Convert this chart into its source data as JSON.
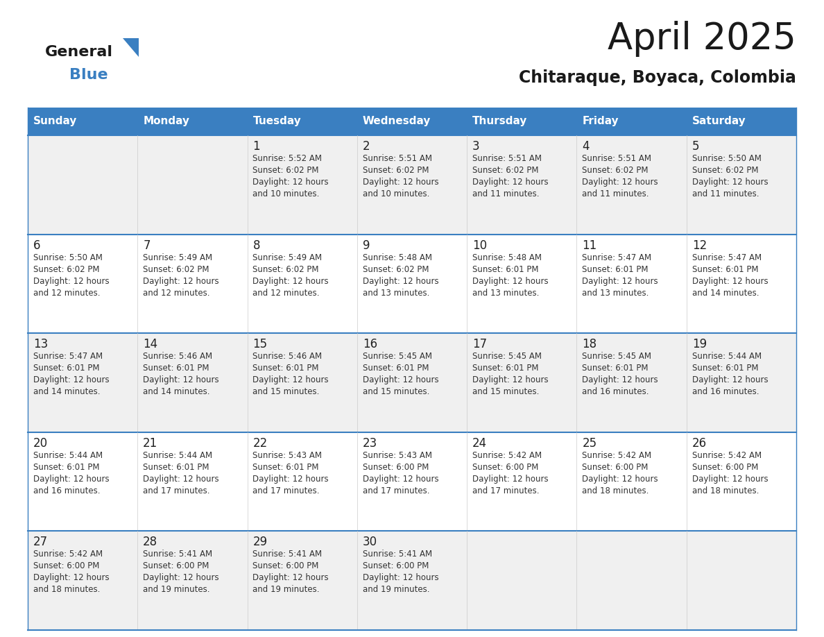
{
  "title": "April 2025",
  "subtitle": "Chitaraque, Boyaca, Colombia",
  "header_color": "#3a7fc1",
  "header_text_color": "#ffffff",
  "row_bg_colors": [
    "#f0f0f0",
    "#ffffff"
  ],
  "border_color": "#3a7fc1",
  "cell_border_color": "#cccccc",
  "text_color": "#333333",
  "day_num_color": "#222222",
  "days_of_week": [
    "Sunday",
    "Monday",
    "Tuesday",
    "Wednesday",
    "Thursday",
    "Friday",
    "Saturday"
  ],
  "calendar_data": [
    [
      {
        "day": "",
        "sunrise": "",
        "sunset": "",
        "daylight": ""
      },
      {
        "day": "",
        "sunrise": "",
        "sunset": "",
        "daylight": ""
      },
      {
        "day": "1",
        "sunrise": "5:52 AM",
        "sunset": "6:02 PM",
        "daylight": "12 hours and 10 minutes."
      },
      {
        "day": "2",
        "sunrise": "5:51 AM",
        "sunset": "6:02 PM",
        "daylight": "12 hours and 10 minutes."
      },
      {
        "day": "3",
        "sunrise": "5:51 AM",
        "sunset": "6:02 PM",
        "daylight": "12 hours and 11 minutes."
      },
      {
        "day": "4",
        "sunrise": "5:51 AM",
        "sunset": "6:02 PM",
        "daylight": "12 hours and 11 minutes."
      },
      {
        "day": "5",
        "sunrise": "5:50 AM",
        "sunset": "6:02 PM",
        "daylight": "12 hours and 11 minutes."
      }
    ],
    [
      {
        "day": "6",
        "sunrise": "5:50 AM",
        "sunset": "6:02 PM",
        "daylight": "12 hours and 12 minutes."
      },
      {
        "day": "7",
        "sunrise": "5:49 AM",
        "sunset": "6:02 PM",
        "daylight": "12 hours and 12 minutes."
      },
      {
        "day": "8",
        "sunrise": "5:49 AM",
        "sunset": "6:02 PM",
        "daylight": "12 hours and 12 minutes."
      },
      {
        "day": "9",
        "sunrise": "5:48 AM",
        "sunset": "6:02 PM",
        "daylight": "12 hours and 13 minutes."
      },
      {
        "day": "10",
        "sunrise": "5:48 AM",
        "sunset": "6:01 PM",
        "daylight": "12 hours and 13 minutes."
      },
      {
        "day": "11",
        "sunrise": "5:47 AM",
        "sunset": "6:01 PM",
        "daylight": "12 hours and 13 minutes."
      },
      {
        "day": "12",
        "sunrise": "5:47 AM",
        "sunset": "6:01 PM",
        "daylight": "12 hours and 14 minutes."
      }
    ],
    [
      {
        "day": "13",
        "sunrise": "5:47 AM",
        "sunset": "6:01 PM",
        "daylight": "12 hours and 14 minutes."
      },
      {
        "day": "14",
        "sunrise": "5:46 AM",
        "sunset": "6:01 PM",
        "daylight": "12 hours and 14 minutes."
      },
      {
        "day": "15",
        "sunrise": "5:46 AM",
        "sunset": "6:01 PM",
        "daylight": "12 hours and 15 minutes."
      },
      {
        "day": "16",
        "sunrise": "5:45 AM",
        "sunset": "6:01 PM",
        "daylight": "12 hours and 15 minutes."
      },
      {
        "day": "17",
        "sunrise": "5:45 AM",
        "sunset": "6:01 PM",
        "daylight": "12 hours and 15 minutes."
      },
      {
        "day": "18",
        "sunrise": "5:45 AM",
        "sunset": "6:01 PM",
        "daylight": "12 hours and 16 minutes."
      },
      {
        "day": "19",
        "sunrise": "5:44 AM",
        "sunset": "6:01 PM",
        "daylight": "12 hours and 16 minutes."
      }
    ],
    [
      {
        "day": "20",
        "sunrise": "5:44 AM",
        "sunset": "6:01 PM",
        "daylight": "12 hours and 16 minutes."
      },
      {
        "day": "21",
        "sunrise": "5:44 AM",
        "sunset": "6:01 PM",
        "daylight": "12 hours and 17 minutes."
      },
      {
        "day": "22",
        "sunrise": "5:43 AM",
        "sunset": "6:01 PM",
        "daylight": "12 hours and 17 minutes."
      },
      {
        "day": "23",
        "sunrise": "5:43 AM",
        "sunset": "6:00 PM",
        "daylight": "12 hours and 17 minutes."
      },
      {
        "day": "24",
        "sunrise": "5:42 AM",
        "sunset": "6:00 PM",
        "daylight": "12 hours and 17 minutes."
      },
      {
        "day": "25",
        "sunrise": "5:42 AM",
        "sunset": "6:00 PM",
        "daylight": "12 hours and 18 minutes."
      },
      {
        "day": "26",
        "sunrise": "5:42 AM",
        "sunset": "6:00 PM",
        "daylight": "12 hours and 18 minutes."
      }
    ],
    [
      {
        "day": "27",
        "sunrise": "5:42 AM",
        "sunset": "6:00 PM",
        "daylight": "12 hours and 18 minutes."
      },
      {
        "day": "28",
        "sunrise": "5:41 AM",
        "sunset": "6:00 PM",
        "daylight": "12 hours and 19 minutes."
      },
      {
        "day": "29",
        "sunrise": "5:41 AM",
        "sunset": "6:00 PM",
        "daylight": "12 hours and 19 minutes."
      },
      {
        "day": "30",
        "sunrise": "5:41 AM",
        "sunset": "6:00 PM",
        "daylight": "12 hours and 19 minutes."
      },
      {
        "day": "",
        "sunrise": "",
        "sunset": "",
        "daylight": ""
      },
      {
        "day": "",
        "sunrise": "",
        "sunset": "",
        "daylight": ""
      },
      {
        "day": "",
        "sunrise": "",
        "sunset": "",
        "daylight": ""
      }
    ]
  ],
  "logo_general_color": "#1a1a1a",
  "logo_blue_color": "#3a7fc1",
  "title_color": "#1a1a1a",
  "subtitle_color": "#1a1a1a"
}
